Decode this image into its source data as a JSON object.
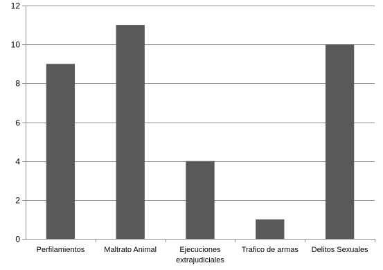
{
  "chart_data": {
    "type": "bar",
    "title": "",
    "xlabel": "",
    "ylabel": "",
    "ylim": [
      0,
      12
    ],
    "yticks": [
      0,
      2,
      4,
      6,
      8,
      10,
      12
    ],
    "grid": "horizontal",
    "legend": "none",
    "bar_color": "#595959",
    "categories": [
      [
        "Perfilamientos"
      ],
      [
        "Maltrato Animal"
      ],
      [
        "Ejecuciones",
        "extrajudiciales"
      ],
      [
        "Trafico de armas"
      ],
      [
        "Delitos Sexuales"
      ]
    ],
    "values": [
      9,
      11,
      4,
      1,
      10
    ]
  }
}
